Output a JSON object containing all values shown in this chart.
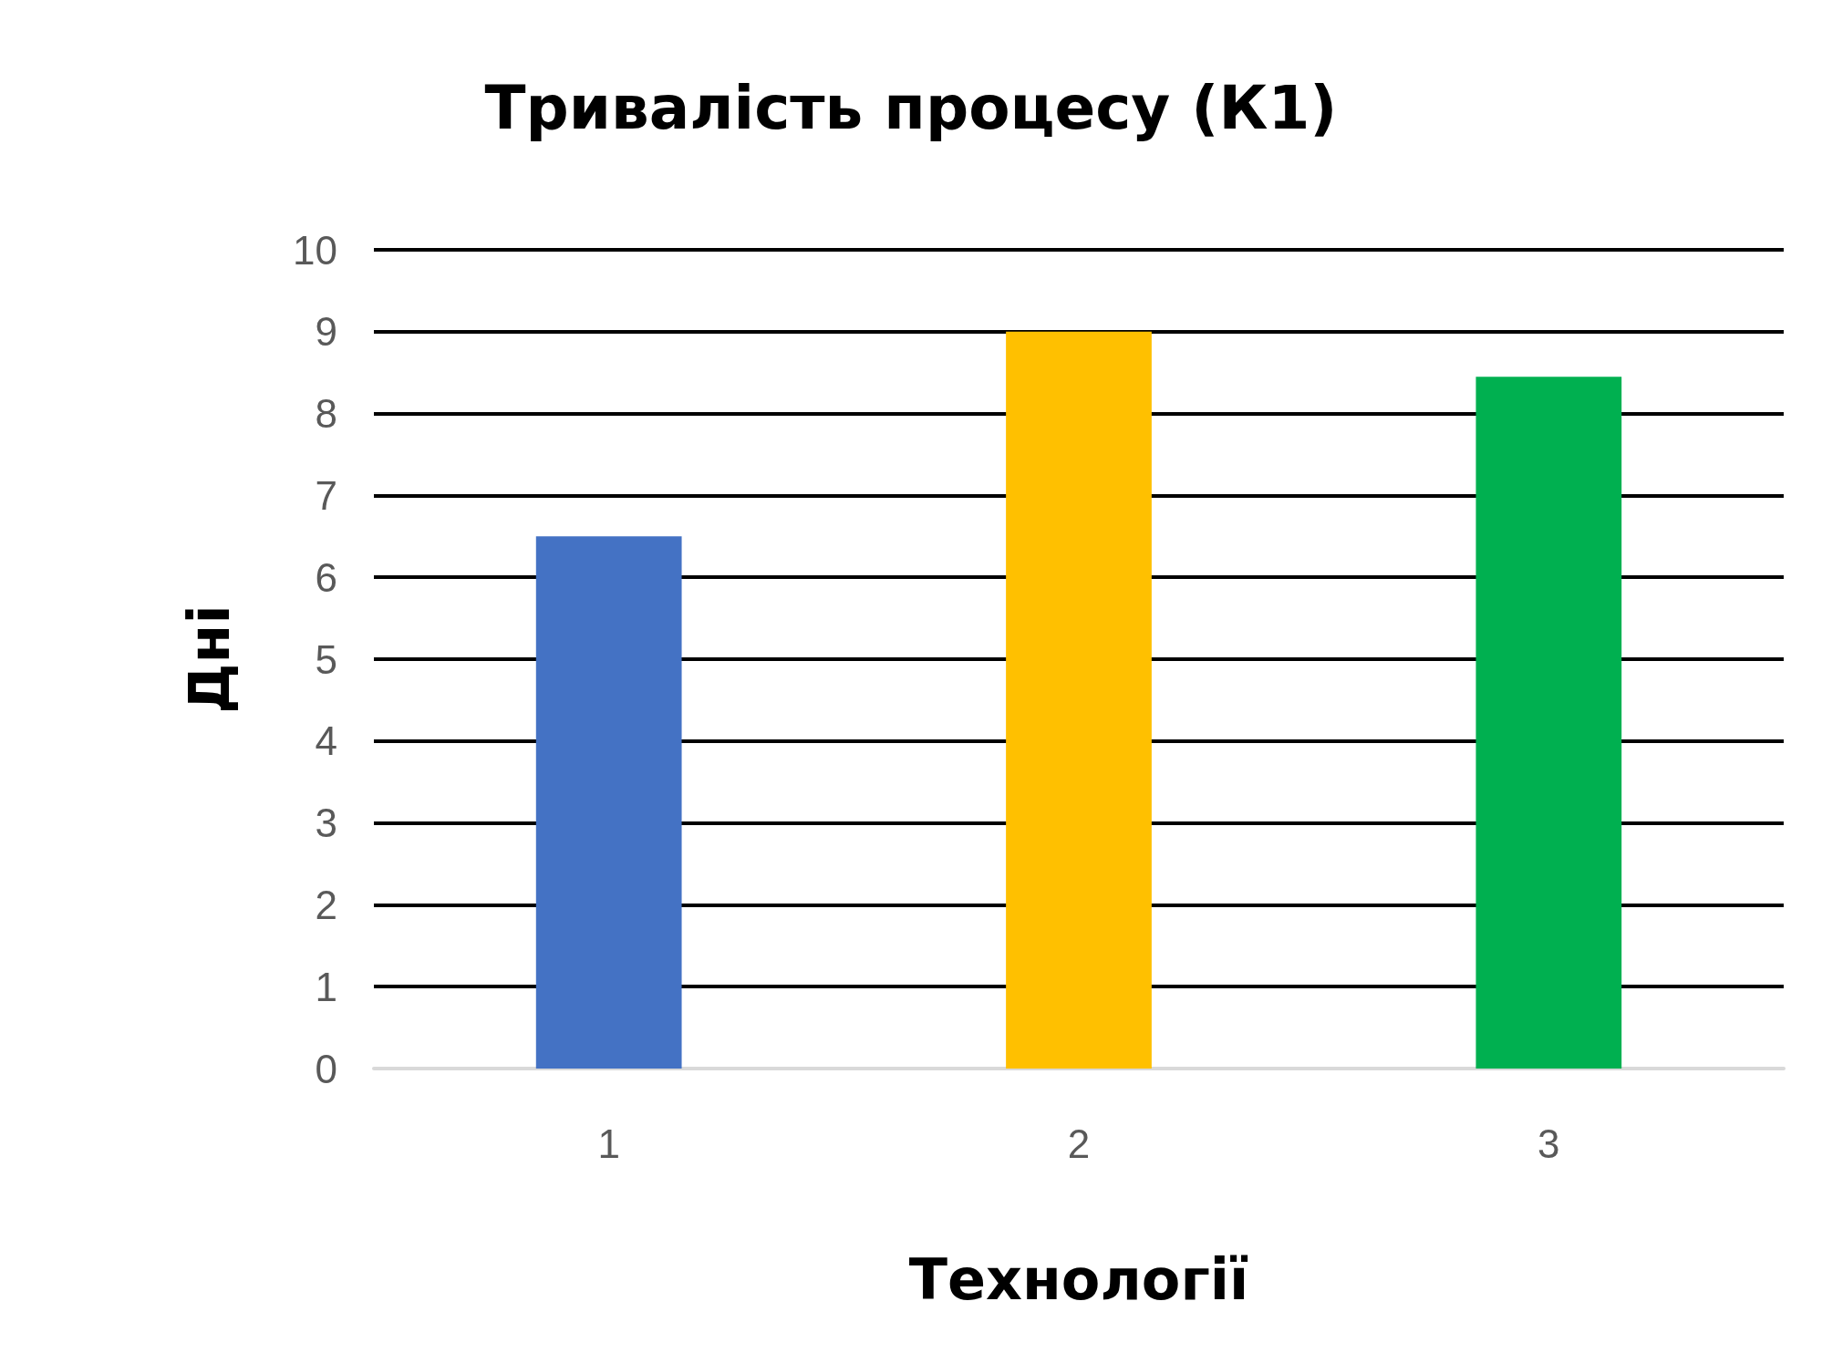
{
  "chart_data": {
    "type": "bar",
    "title": "Тривалість процесу (К1)",
    "xlabel": "Технології",
    "ylabel": "Дні",
    "categories": [
      "1",
      "2",
      "3"
    ],
    "values": [
      6.5,
      9,
      8.45
    ],
    "colors": [
      "#4472c4",
      "#ffc000",
      "#00b050"
    ],
    "ylim": [
      0,
      10
    ],
    "yticks": [
      0,
      1,
      2,
      3,
      4,
      5,
      6,
      7,
      8,
      9,
      10
    ],
    "grid": "y"
  }
}
